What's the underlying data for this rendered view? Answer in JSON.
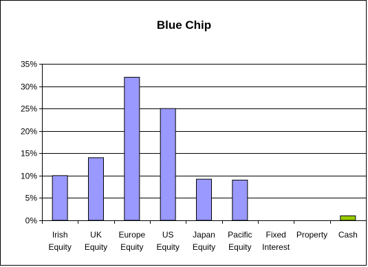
{
  "chart_data": {
    "type": "bar",
    "title": "Blue Chip",
    "categories": [
      [
        "Irish",
        "Equity"
      ],
      [
        "UK",
        "Equity"
      ],
      [
        "Europe",
        "Equity"
      ],
      [
        "US",
        "Equity"
      ],
      [
        "Japan",
        "Equity"
      ],
      [
        "Pacific",
        "Equity"
      ],
      [
        "Fixed",
        "Interest"
      ],
      [
        "Property"
      ],
      [
        "Cash"
      ]
    ],
    "values": [
      10,
      14,
      32,
      25,
      9.2,
      9,
      0,
      0,
      1
    ],
    "bar_colors": [
      "#9999ff",
      "#9999ff",
      "#9999ff",
      "#9999ff",
      "#9999ff",
      "#9999ff",
      "#9999ff",
      "#9999ff",
      "#99cc00"
    ],
    "ylim": [
      0,
      35
    ],
    "yticks": [
      0,
      5,
      10,
      15,
      20,
      25,
      30,
      35
    ],
    "ytick_labels": [
      "0%",
      "5%",
      "10%",
      "15%",
      "20%",
      "25%",
      "30%",
      "35%"
    ],
    "grid": true,
    "xlabel": "",
    "ylabel": ""
  }
}
